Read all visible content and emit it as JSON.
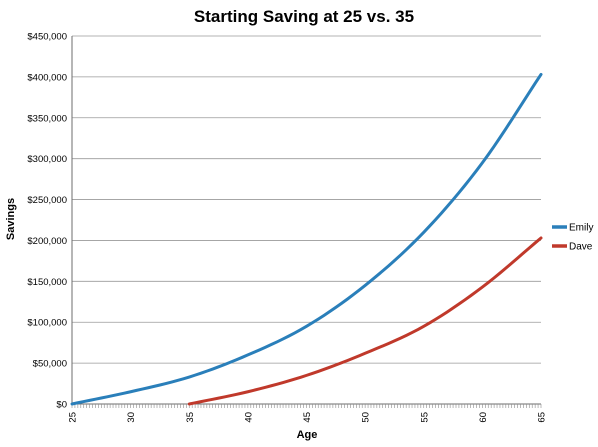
{
  "chart_data": {
    "type": "line",
    "title": "Starting Saving at 25 vs. 35",
    "xlabel": "Age",
    "ylabel": "Savings",
    "xlim": [
      25,
      65
    ],
    "ylim": [
      0,
      450000
    ],
    "x_ticks": [
      "25",
      "30",
      "35",
      "40",
      "45",
      "50",
      "55",
      "60",
      "65"
    ],
    "y_ticks": [
      "$0",
      "$50,000",
      "$100,000",
      "$150,000",
      "$200,000",
      "$250,000",
      "$300,000",
      "$350,000",
      "$400,000",
      "$450,000"
    ],
    "grid": "horizontal",
    "legend_position": "right",
    "colors": {
      "Emily": "#2a7fba",
      "Dave": "#c0392b"
    },
    "series": [
      {
        "name": "Emily",
        "x": [
          25,
          30,
          35,
          40,
          45,
          50,
          55,
          60,
          65
        ],
        "values": [
          0,
          15000,
          33000,
          60000,
          95000,
          145000,
          210000,
          295000,
          403000
        ]
      },
      {
        "name": "Dave",
        "x": [
          35,
          40,
          45,
          50,
          55,
          60,
          65
        ],
        "values": [
          0,
          15000,
          35000,
          62000,
          95000,
          143000,
          203000
        ]
      }
    ]
  }
}
